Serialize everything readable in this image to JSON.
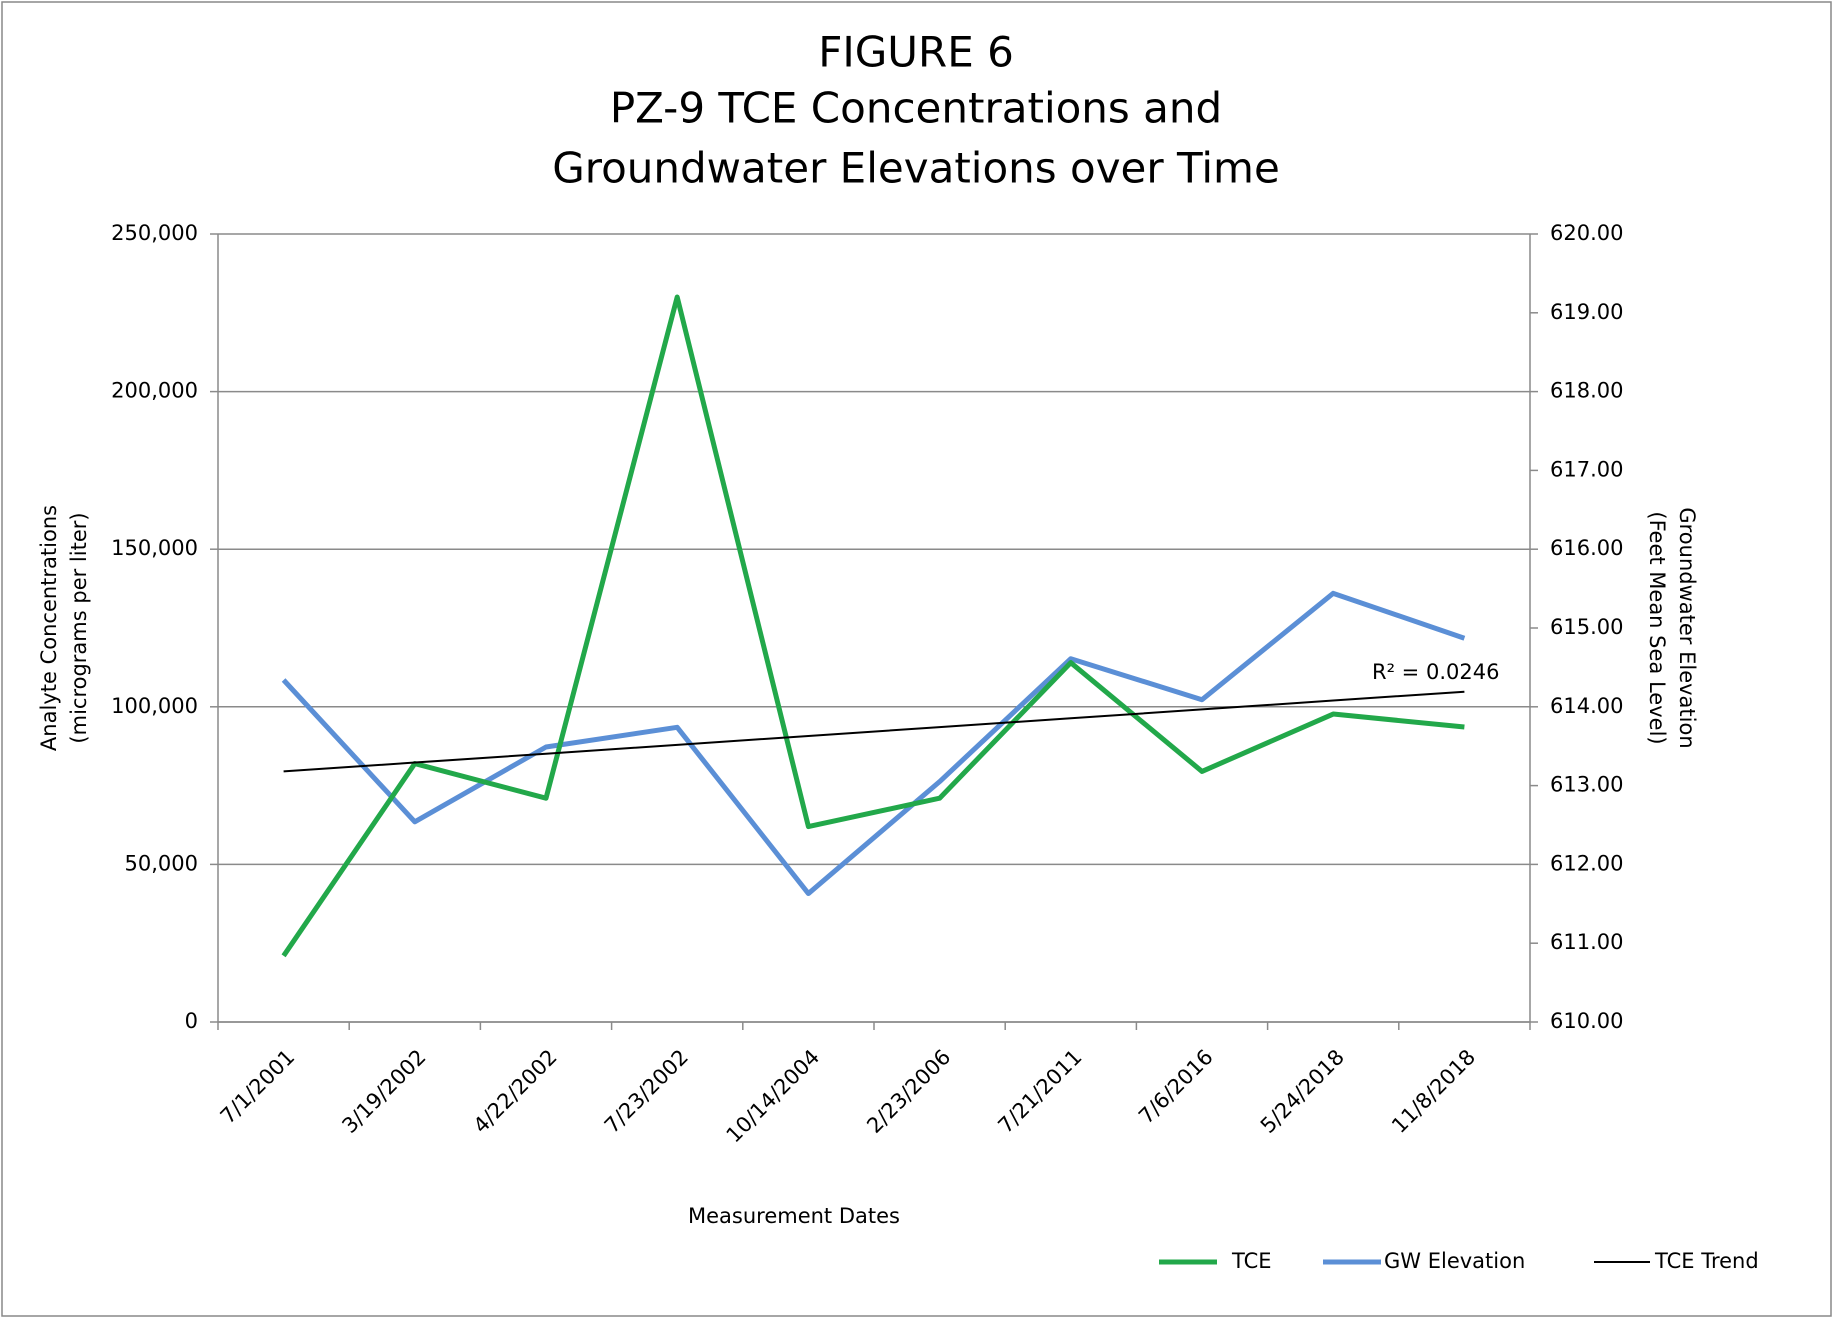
{
  "chart_data": {
    "type": "line",
    "title": [
      "FIGURE 6",
      "PZ-9 TCE Concentrations and",
      "Groundwater Elevations over Time"
    ],
    "xlabel": "Measurement Dates",
    "ylabel": [
      "Analyte Concentrations",
      "(micrograms per liter)"
    ],
    "y2label": [
      "Groundwater Elevation",
      "(Feet Mean Sea Level)"
    ],
    "categories": [
      "7/1/2001",
      "3/19/2002",
      "4/22/2002",
      "7/23/2002",
      "10/14/2004",
      "2/23/2006",
      "7/21/2011",
      "7/6/2016",
      "5/24/2018",
      "11/8/2018"
    ],
    "series": [
      {
        "name": "TCE",
        "color": "#22a84a",
        "values": [
          21000,
          82000,
          71000,
          230000,
          62000,
          71000,
          114000,
          79500,
          97700,
          93600
        ]
      },
      {
        "name": "GW Elevation",
        "color": "#5b8fd6",
        "axis": "y2",
        "values": [
          614.34,
          612.54,
          613.49,
          613.74,
          611.63,
          613.05,
          614.61,
          614.09,
          615.44,
          614.87
        ]
      },
      {
        "name": "TCE Trend",
        "color": "#000000",
        "values": [
          79500,
          82310,
          85120,
          87930,
          90740,
          93550,
          96360,
          99170,
          101980,
          104790
        ]
      }
    ],
    "annotation": "R² = 0.0246",
    "ylim": [
      0,
      250000
    ],
    "yticks": [
      0,
      {
        "value": 50000,
        "label": "50,000"
      },
      {
        "value": 100000,
        "label": "100,000"
      },
      {
        "value": 150000,
        "label": "150,000"
      },
      {
        "value": 200000,
        "label": "200,000"
      },
      {
        "value": 250000,
        "label": "250,000"
      }
    ],
    "y2lim": [
      610,
      620
    ],
    "y2ticks": [
      {
        "value": 610,
        "label": "610.00"
      },
      {
        "value": 611,
        "label": "611.00"
      },
      {
        "value": 612,
        "label": "612.00"
      },
      {
        "value": 613,
        "label": "613.00"
      },
      {
        "value": 614,
        "label": "614.00"
      },
      {
        "value": 615,
        "label": "615.00"
      },
      {
        "value": 616,
        "label": "616.00"
      },
      {
        "value": 617,
        "label": "617.00"
      },
      {
        "value": 618,
        "label": "618.00"
      },
      {
        "value": 619,
        "label": "619.00"
      },
      {
        "value": 620,
        "label": "620.00"
      }
    ],
    "grid": true,
    "legend": "bottom-right"
  }
}
